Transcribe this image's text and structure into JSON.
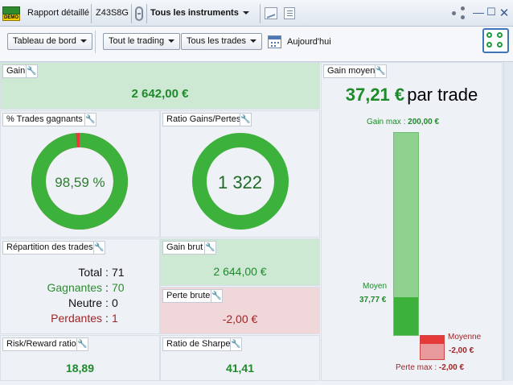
{
  "titlebar": {
    "demo_label": "DEMO",
    "report_title": "Rapport détaillé",
    "account": "Z43S8G",
    "instruments": "Tous les instruments"
  },
  "toolbar": {
    "dashboard": "Tableau de bord",
    "trading_filter": "Tout le trading",
    "trades_filter": "Tous les trades",
    "period": "Aujourd'hui"
  },
  "panels": {
    "gain": {
      "title": "Gain",
      "value": "2 642,00 €"
    },
    "win_rate": {
      "title": "% Trades gagnants",
      "value": "98,59 %",
      "fraction": 0.9859
    },
    "gain_loss_ratio": {
      "title": "Ratio Gains/Pertes",
      "value": "1 322",
      "fraction": 0.9992
    },
    "avg_gain": {
      "title": "Gain moyen",
      "value": "37,21 €",
      "suffix": "par trade",
      "max_label": "Gain max :",
      "max_value": "200,00 €",
      "avg_label": "Moyen",
      "avg_value": "37,77 €",
      "loss_avg_label": "Moyenne",
      "loss_avg_value": "-2,00 €",
      "loss_max_label": "Perte max :",
      "loss_max_value": "-2,00 €"
    },
    "distribution": {
      "title": "Répartition des trades",
      "rows": [
        {
          "label": "Total",
          "value": "71"
        },
        {
          "label": "Gagnantes",
          "value": "70"
        },
        {
          "label": "Neutre",
          "value": "0"
        },
        {
          "label": "Perdantes",
          "value": "1"
        }
      ]
    },
    "gross_gain": {
      "title": "Gain brut",
      "value": "2 644,00 €"
    },
    "gross_loss": {
      "title": "Perte brute",
      "value": "-2,00 €"
    },
    "risk_reward": {
      "title": "Risk/Reward ratio",
      "value": "18,89"
    },
    "sharpe": {
      "title": "Ratio de Sharpe",
      "value": "41,41"
    }
  },
  "colors": {
    "gain_green": "#3cb23c",
    "gain_bg": "#cde8d3",
    "loss_red": "#e63a3a",
    "loss_bg": "#f0d7d9",
    "bar_light": "#8fd18f"
  }
}
